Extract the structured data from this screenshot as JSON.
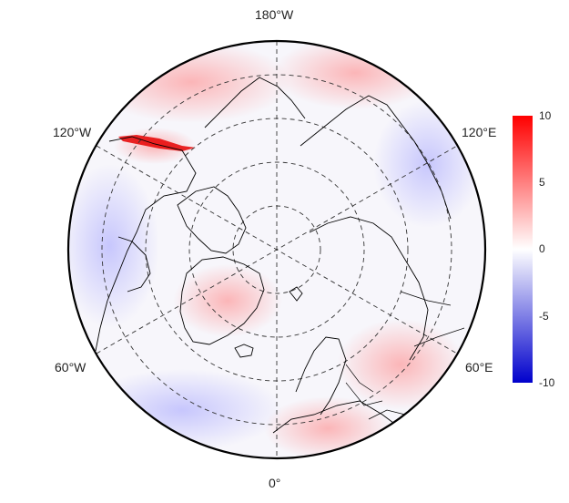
{
  "map": {
    "projection": "north-polar-stereographic",
    "longitude_labels": {
      "top": "180°W",
      "bottom": "0°",
      "upper_left": "120°W",
      "upper_right": "120°E",
      "lower_left": "60°W",
      "lower_right": "60°E"
    },
    "graticule": "dashed",
    "coastlines": true
  },
  "colorbar": {
    "ticks": [
      "10",
      "5",
      "0",
      "-5",
      "-10"
    ],
    "range": [
      -10,
      10
    ],
    "colors": {
      "max": "#ff0000",
      "mid": "#ffffff",
      "min": "#0000cc"
    }
  }
}
